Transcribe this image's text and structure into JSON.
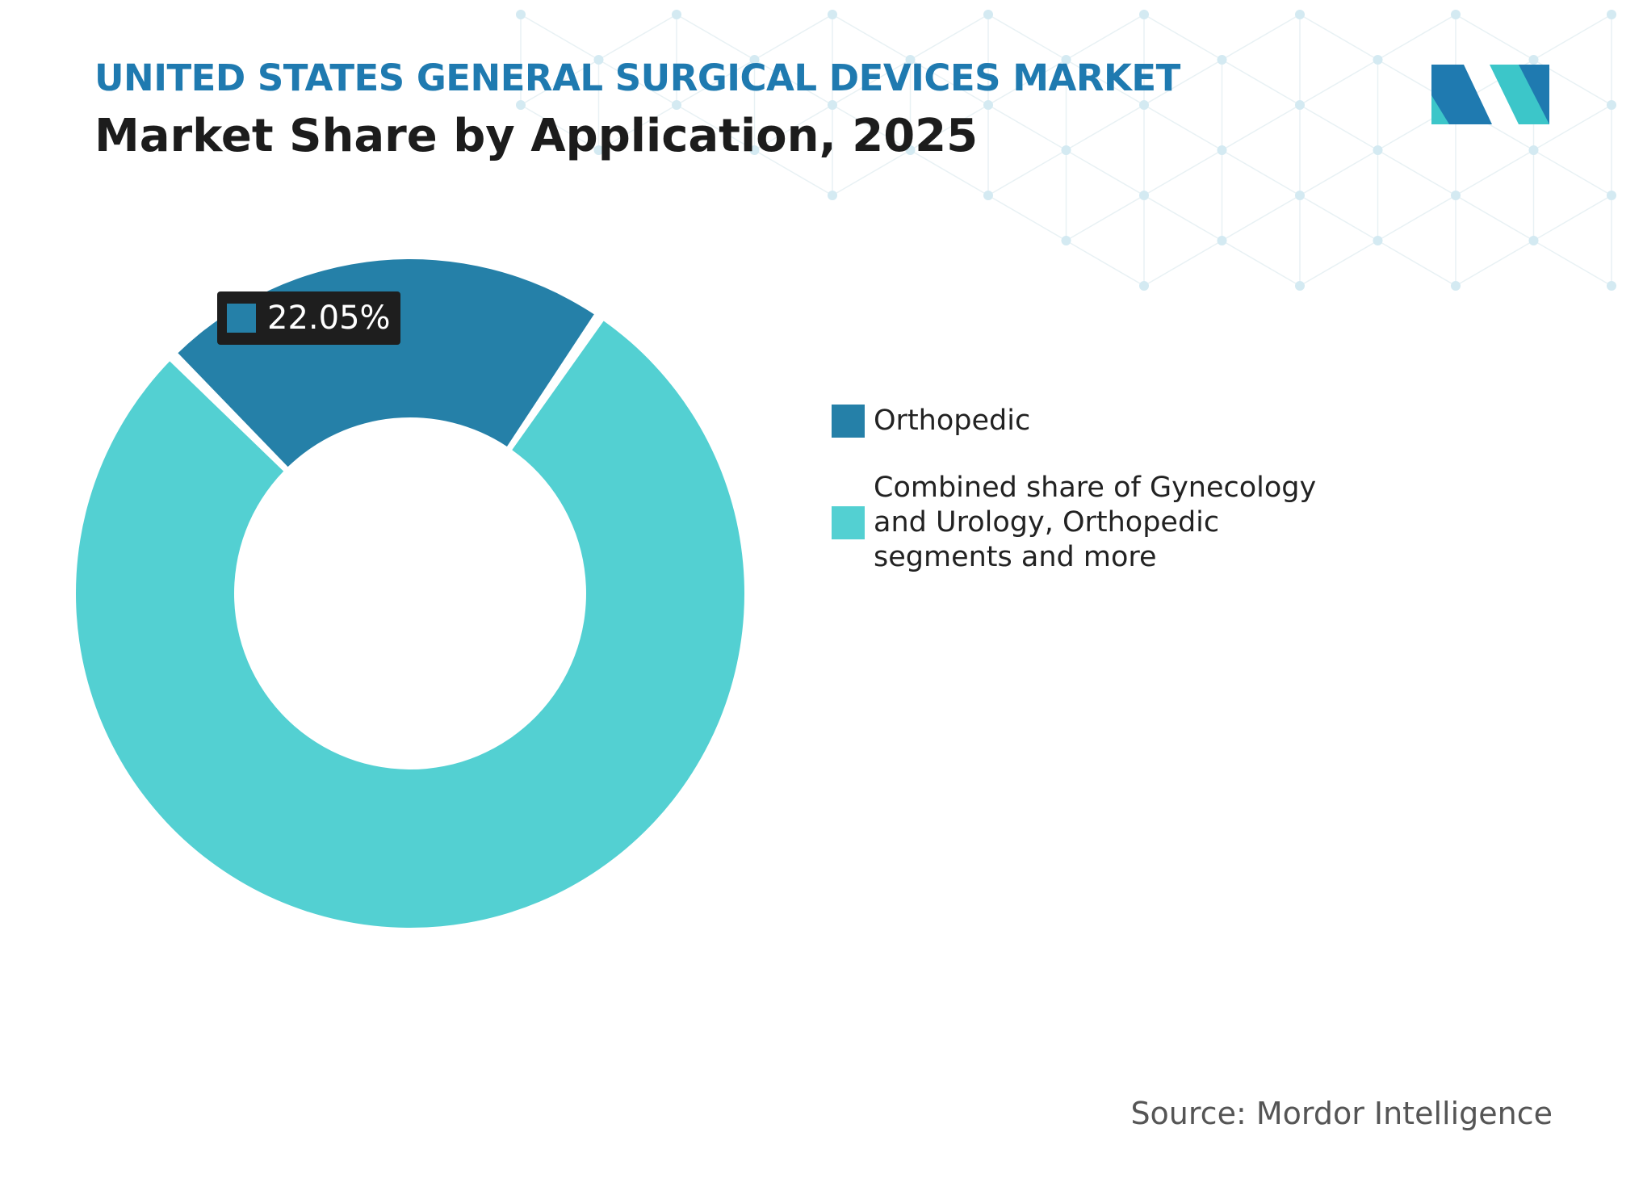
{
  "header": {
    "supertitle": "UNITED STATES GENERAL SURGICAL DEVICES MARKET",
    "title": "Market Share by Application, 2025"
  },
  "colors": {
    "orthopedic": "#2580a8",
    "other": "#53d0d2",
    "label_bg": "#1e1e1e",
    "logo_dark": "#1f7ab0",
    "logo_light": "#3cc6c9"
  },
  "icons": {
    "logo": "mordor-intelligence-logo"
  },
  "chart_data": {
    "type": "pie",
    "variant": "donut",
    "title": "Market Share by Application, 2025",
    "unit": "%",
    "slices": [
      {
        "label": "Orthopedic",
        "value": 22.05,
        "data_label": "22.05%"
      },
      {
        "label": "Combined share of Gynecology and Urology, Orthopedic segments and more",
        "value": 77.95
      }
    ],
    "legend_placement": "right"
  },
  "source": "Source: Mordor Intelligence"
}
